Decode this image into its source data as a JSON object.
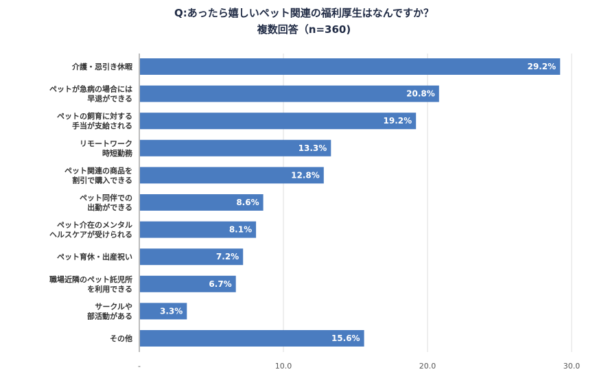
{
  "chart_data": {
    "type": "bar",
    "orientation": "horizontal",
    "title": "Q:あったら嬉しいペット関連の福利厚生はなんですか？",
    "subtitle": "複数回答（n=360)",
    "categories": [
      [
        "介護・忌引き休暇"
      ],
      [
        "ペットが急病の場合には",
        "早退ができる"
      ],
      [
        "ペットの飼育に対する",
        "手当が支給される"
      ],
      [
        "リモートワーク",
        "時短勤務"
      ],
      [
        "ペット関連の商品を",
        "割引で購入できる"
      ],
      [
        "ペット同伴での",
        "出勤ができる"
      ],
      [
        "ペット介在のメンタル",
        "ヘルスケアが受けられる"
      ],
      [
        "ペット育休・出産祝い"
      ],
      [
        "職場近隣のペット託児所",
        "を利用できる"
      ],
      [
        "サークルや",
        "部活動がある"
      ],
      [
        "その他"
      ]
    ],
    "values": [
      29.2,
      20.8,
      19.2,
      13.3,
      12.8,
      8.6,
      8.1,
      7.2,
      6.7,
      3.3,
      15.6
    ],
    "value_labels": [
      "29.2%",
      "20.8%",
      "19.2%",
      "13.3%",
      "12.8%",
      "8.6%",
      "8.1%",
      "7.2%",
      "6.7%",
      "3.3%",
      "15.6%"
    ],
    "xticks": [
      0,
      10,
      20,
      30
    ],
    "xtick_labels": [
      "-",
      "10.0",
      "20.0",
      "30.0"
    ],
    "xlim": [
      0,
      30
    ],
    "xlabel": "",
    "ylabel": "",
    "grid": true,
    "bar_color": "#4a7cc0"
  }
}
